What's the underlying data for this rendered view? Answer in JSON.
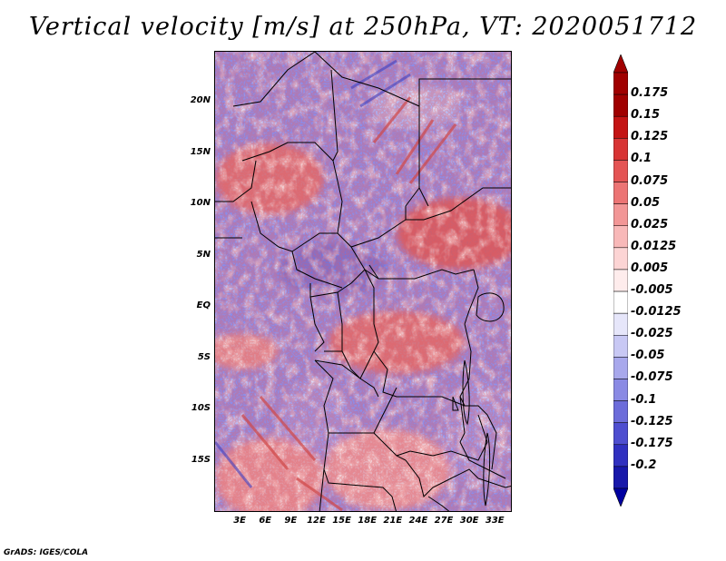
{
  "title": "Vertical velocity [m/s] at 250hPa, VT: 2020051712",
  "credit": "GrADS: IGES/COLA",
  "map": {
    "lon_range": [
      0,
      35
    ],
    "lat_range": [
      -20,
      25
    ],
    "lat_labels": [
      {
        "text": "20N",
        "lat": 20
      },
      {
        "text": "15N",
        "lat": 15
      },
      {
        "text": "10N",
        "lat": 10
      },
      {
        "text": "5N",
        "lat": 5
      },
      {
        "text": "EQ",
        "lat": 0
      },
      {
        "text": "5S",
        "lat": -5
      },
      {
        "text": "10S",
        "lat": -10
      },
      {
        "text": "15S",
        "lat": -15
      }
    ],
    "lon_labels": [
      {
        "text": "3E",
        "lon": 3
      },
      {
        "text": "6E",
        "lon": 6
      },
      {
        "text": "9E",
        "lon": 9
      },
      {
        "text": "12E",
        "lon": 12
      },
      {
        "text": "15E",
        "lon": 15
      },
      {
        "text": "18E",
        "lon": 18
      },
      {
        "text": "21E",
        "lon": 21
      },
      {
        "text": "24E",
        "lon": 24
      },
      {
        "text": "27E",
        "lon": 27
      },
      {
        "text": "30E",
        "lon": 30
      },
      {
        "text": "33E",
        "lon": 33
      }
    ],
    "colors": {
      "water_bg": "#7f7fe6",
      "border": "#000000"
    }
  },
  "colorbar": {
    "levels": [
      {
        "label": "0.175",
        "color": "#a00000"
      },
      {
        "label": "0.15",
        "color": "#c41414"
      },
      {
        "label": "0.125",
        "color": "#d83434"
      },
      {
        "label": "0.1",
        "color": "#e45454"
      },
      {
        "label": "0.075",
        "color": "#ec7474"
      },
      {
        "label": "0.05",
        "color": "#f29696"
      },
      {
        "label": "0.025",
        "color": "#f8b8b8"
      },
      {
        "label": "0.0125",
        "color": "#fcd4d4"
      },
      {
        "label": "0.005",
        "color": "#feecec"
      },
      {
        "label": "-0.005",
        "color": "#ffffff"
      },
      {
        "label": "-0.0125",
        "color": "#e6e6fa"
      },
      {
        "label": "-0.025",
        "color": "#c8c8f4"
      },
      {
        "label": "-0.05",
        "color": "#a8a8ec"
      },
      {
        "label": "-0.075",
        "color": "#8a8ae4"
      },
      {
        "label": "-0.1",
        "color": "#6c6cda"
      },
      {
        "label": "-0.125",
        "color": "#4e4ed0"
      },
      {
        "label": "-0.175",
        "color": "#3030c0"
      },
      {
        "label": "-0.2",
        "color": "#1818aa"
      }
    ],
    "top_color": "#a00000",
    "bottom_color": "#0000a0"
  }
}
